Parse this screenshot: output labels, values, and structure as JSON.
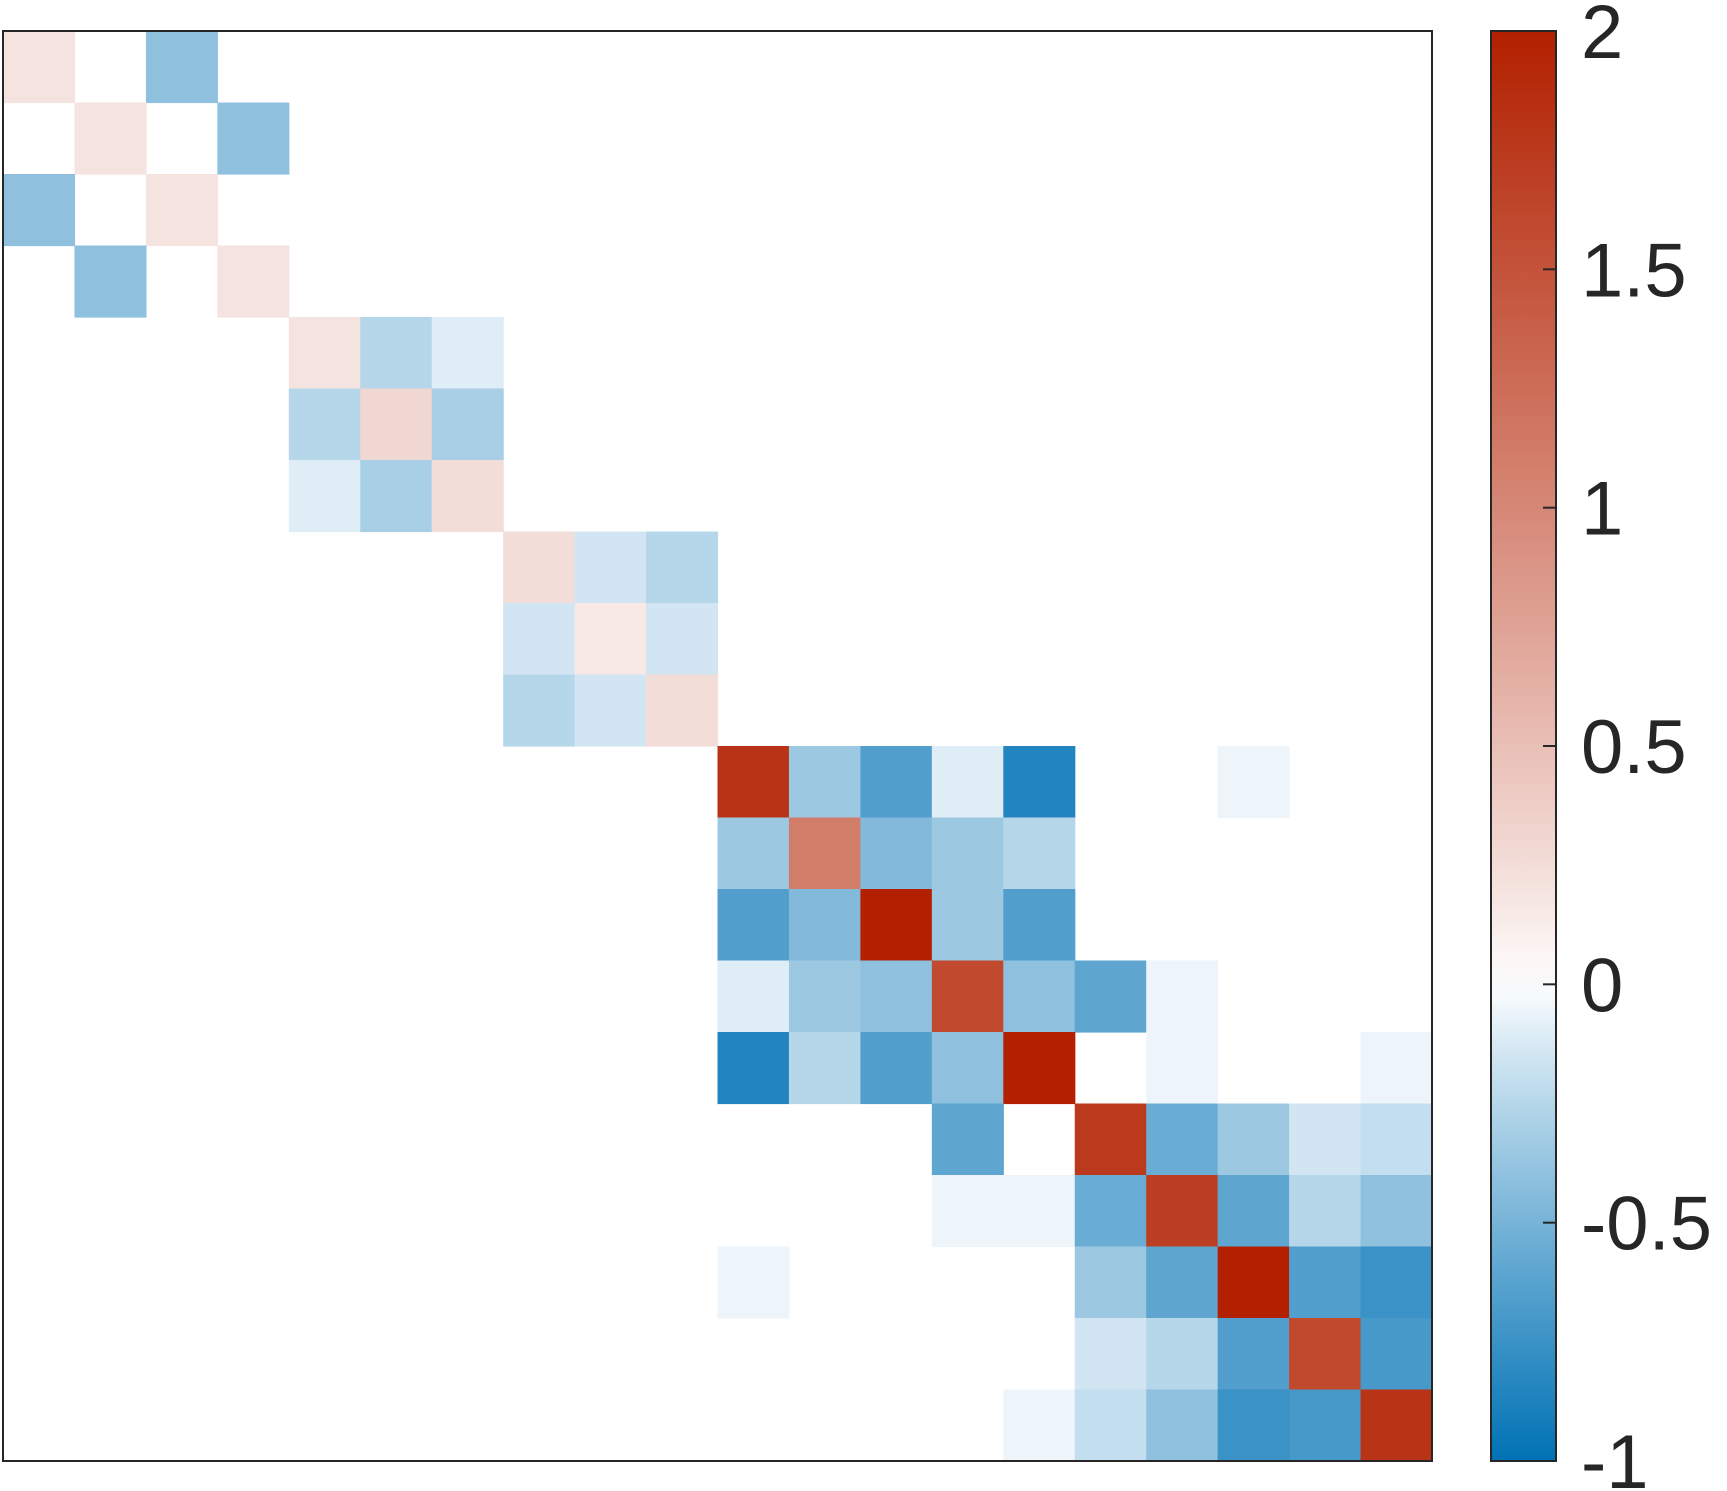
{
  "chart_data": {
    "type": "heatmap",
    "title": "",
    "xlabel": "",
    "ylabel": "",
    "rows": 20,
    "cols": 20,
    "color_range": [
      -1,
      2
    ],
    "colormap": {
      "negative_end": "#0072b5",
      "zero": "#ffffff",
      "positive_end": "#b22000"
    },
    "colorbar": {
      "ticks": [
        2,
        1.5,
        1,
        0.5,
        0,
        -0.5,
        -1
      ],
      "tick_labels": [
        "2",
        "1.5",
        "1",
        "0.5",
        "0",
        "-0.5",
        "-1"
      ],
      "placement": "right"
    },
    "cells": [
      [
        0,
        0,
        0.2
      ],
      [
        0,
        2,
        -0.4
      ],
      [
        1,
        1,
        0.2
      ],
      [
        1,
        3,
        -0.4
      ],
      [
        2,
        0,
        -0.4
      ],
      [
        2,
        2,
        0.2
      ],
      [
        3,
        1,
        -0.4
      ],
      [
        3,
        3,
        0.2
      ],
      [
        4,
        4,
        0.2
      ],
      [
        4,
        5,
        -0.25
      ],
      [
        4,
        6,
        -0.1
      ],
      [
        5,
        4,
        -0.25
      ],
      [
        5,
        5,
        0.3
      ],
      [
        5,
        6,
        -0.3
      ],
      [
        6,
        4,
        -0.1
      ],
      [
        6,
        5,
        -0.3
      ],
      [
        6,
        6,
        0.25
      ],
      [
        7,
        7,
        0.25
      ],
      [
        7,
        8,
        -0.15
      ],
      [
        7,
        9,
        -0.25
      ],
      [
        8,
        7,
        -0.15
      ],
      [
        8,
        8,
        0.15
      ],
      [
        8,
        9,
        -0.15
      ],
      [
        9,
        7,
        -0.25
      ],
      [
        9,
        8,
        -0.15
      ],
      [
        9,
        9,
        0.25
      ],
      [
        10,
        10,
        1.8
      ],
      [
        10,
        11,
        -0.35
      ],
      [
        10,
        12,
        -0.65
      ],
      [
        10,
        13,
        -0.1
      ],
      [
        10,
        14,
        -0.85
      ],
      [
        10,
        17,
        -0.05
      ],
      [
        11,
        10,
        -0.35
      ],
      [
        11,
        11,
        1.1
      ],
      [
        11,
        12,
        -0.45
      ],
      [
        11,
        13,
        -0.35
      ],
      [
        11,
        14,
        -0.25
      ],
      [
        12,
        10,
        -0.65
      ],
      [
        12,
        11,
        -0.45
      ],
      [
        12,
        12,
        2.0
      ],
      [
        12,
        13,
        -0.35
      ],
      [
        12,
        14,
        -0.65
      ],
      [
        13,
        10,
        -0.1
      ],
      [
        13,
        11,
        -0.35
      ],
      [
        13,
        12,
        -0.4
      ],
      [
        13,
        13,
        1.6
      ],
      [
        13,
        14,
        -0.4
      ],
      [
        13,
        15,
        -0.6
      ],
      [
        13,
        16,
        -0.05
      ],
      [
        14,
        10,
        -0.85
      ],
      [
        14,
        11,
        -0.25
      ],
      [
        14,
        12,
        -0.65
      ],
      [
        14,
        13,
        -0.4
      ],
      [
        14,
        14,
        2.0
      ],
      [
        14,
        16,
        -0.05
      ],
      [
        14,
        19,
        -0.05
      ],
      [
        15,
        13,
        -0.6
      ],
      [
        15,
        15,
        1.75
      ],
      [
        15,
        16,
        -0.55
      ],
      [
        15,
        17,
        -0.35
      ],
      [
        15,
        18,
        -0.15
      ],
      [
        15,
        19,
        -0.2
      ],
      [
        16,
        13,
        -0.05
      ],
      [
        16,
        14,
        -0.05
      ],
      [
        16,
        15,
        -0.55
      ],
      [
        16,
        16,
        1.7
      ],
      [
        16,
        17,
        -0.6
      ],
      [
        16,
        18,
        -0.25
      ],
      [
        16,
        19,
        -0.4
      ],
      [
        17,
        10,
        -0.05
      ],
      [
        17,
        15,
        -0.35
      ],
      [
        17,
        16,
        -0.6
      ],
      [
        17,
        17,
        2.0
      ],
      [
        17,
        18,
        -0.65
      ],
      [
        17,
        19,
        -0.75
      ],
      [
        18,
        15,
        -0.15
      ],
      [
        18,
        16,
        -0.25
      ],
      [
        18,
        17,
        -0.65
      ],
      [
        18,
        18,
        1.6
      ],
      [
        18,
        19,
        -0.7
      ],
      [
        19,
        14,
        -0.05
      ],
      [
        19,
        15,
        -0.2
      ],
      [
        19,
        16,
        -0.4
      ],
      [
        19,
        17,
        -0.75
      ],
      [
        19,
        18,
        -0.7
      ],
      [
        19,
        19,
        1.8
      ]
    ]
  }
}
